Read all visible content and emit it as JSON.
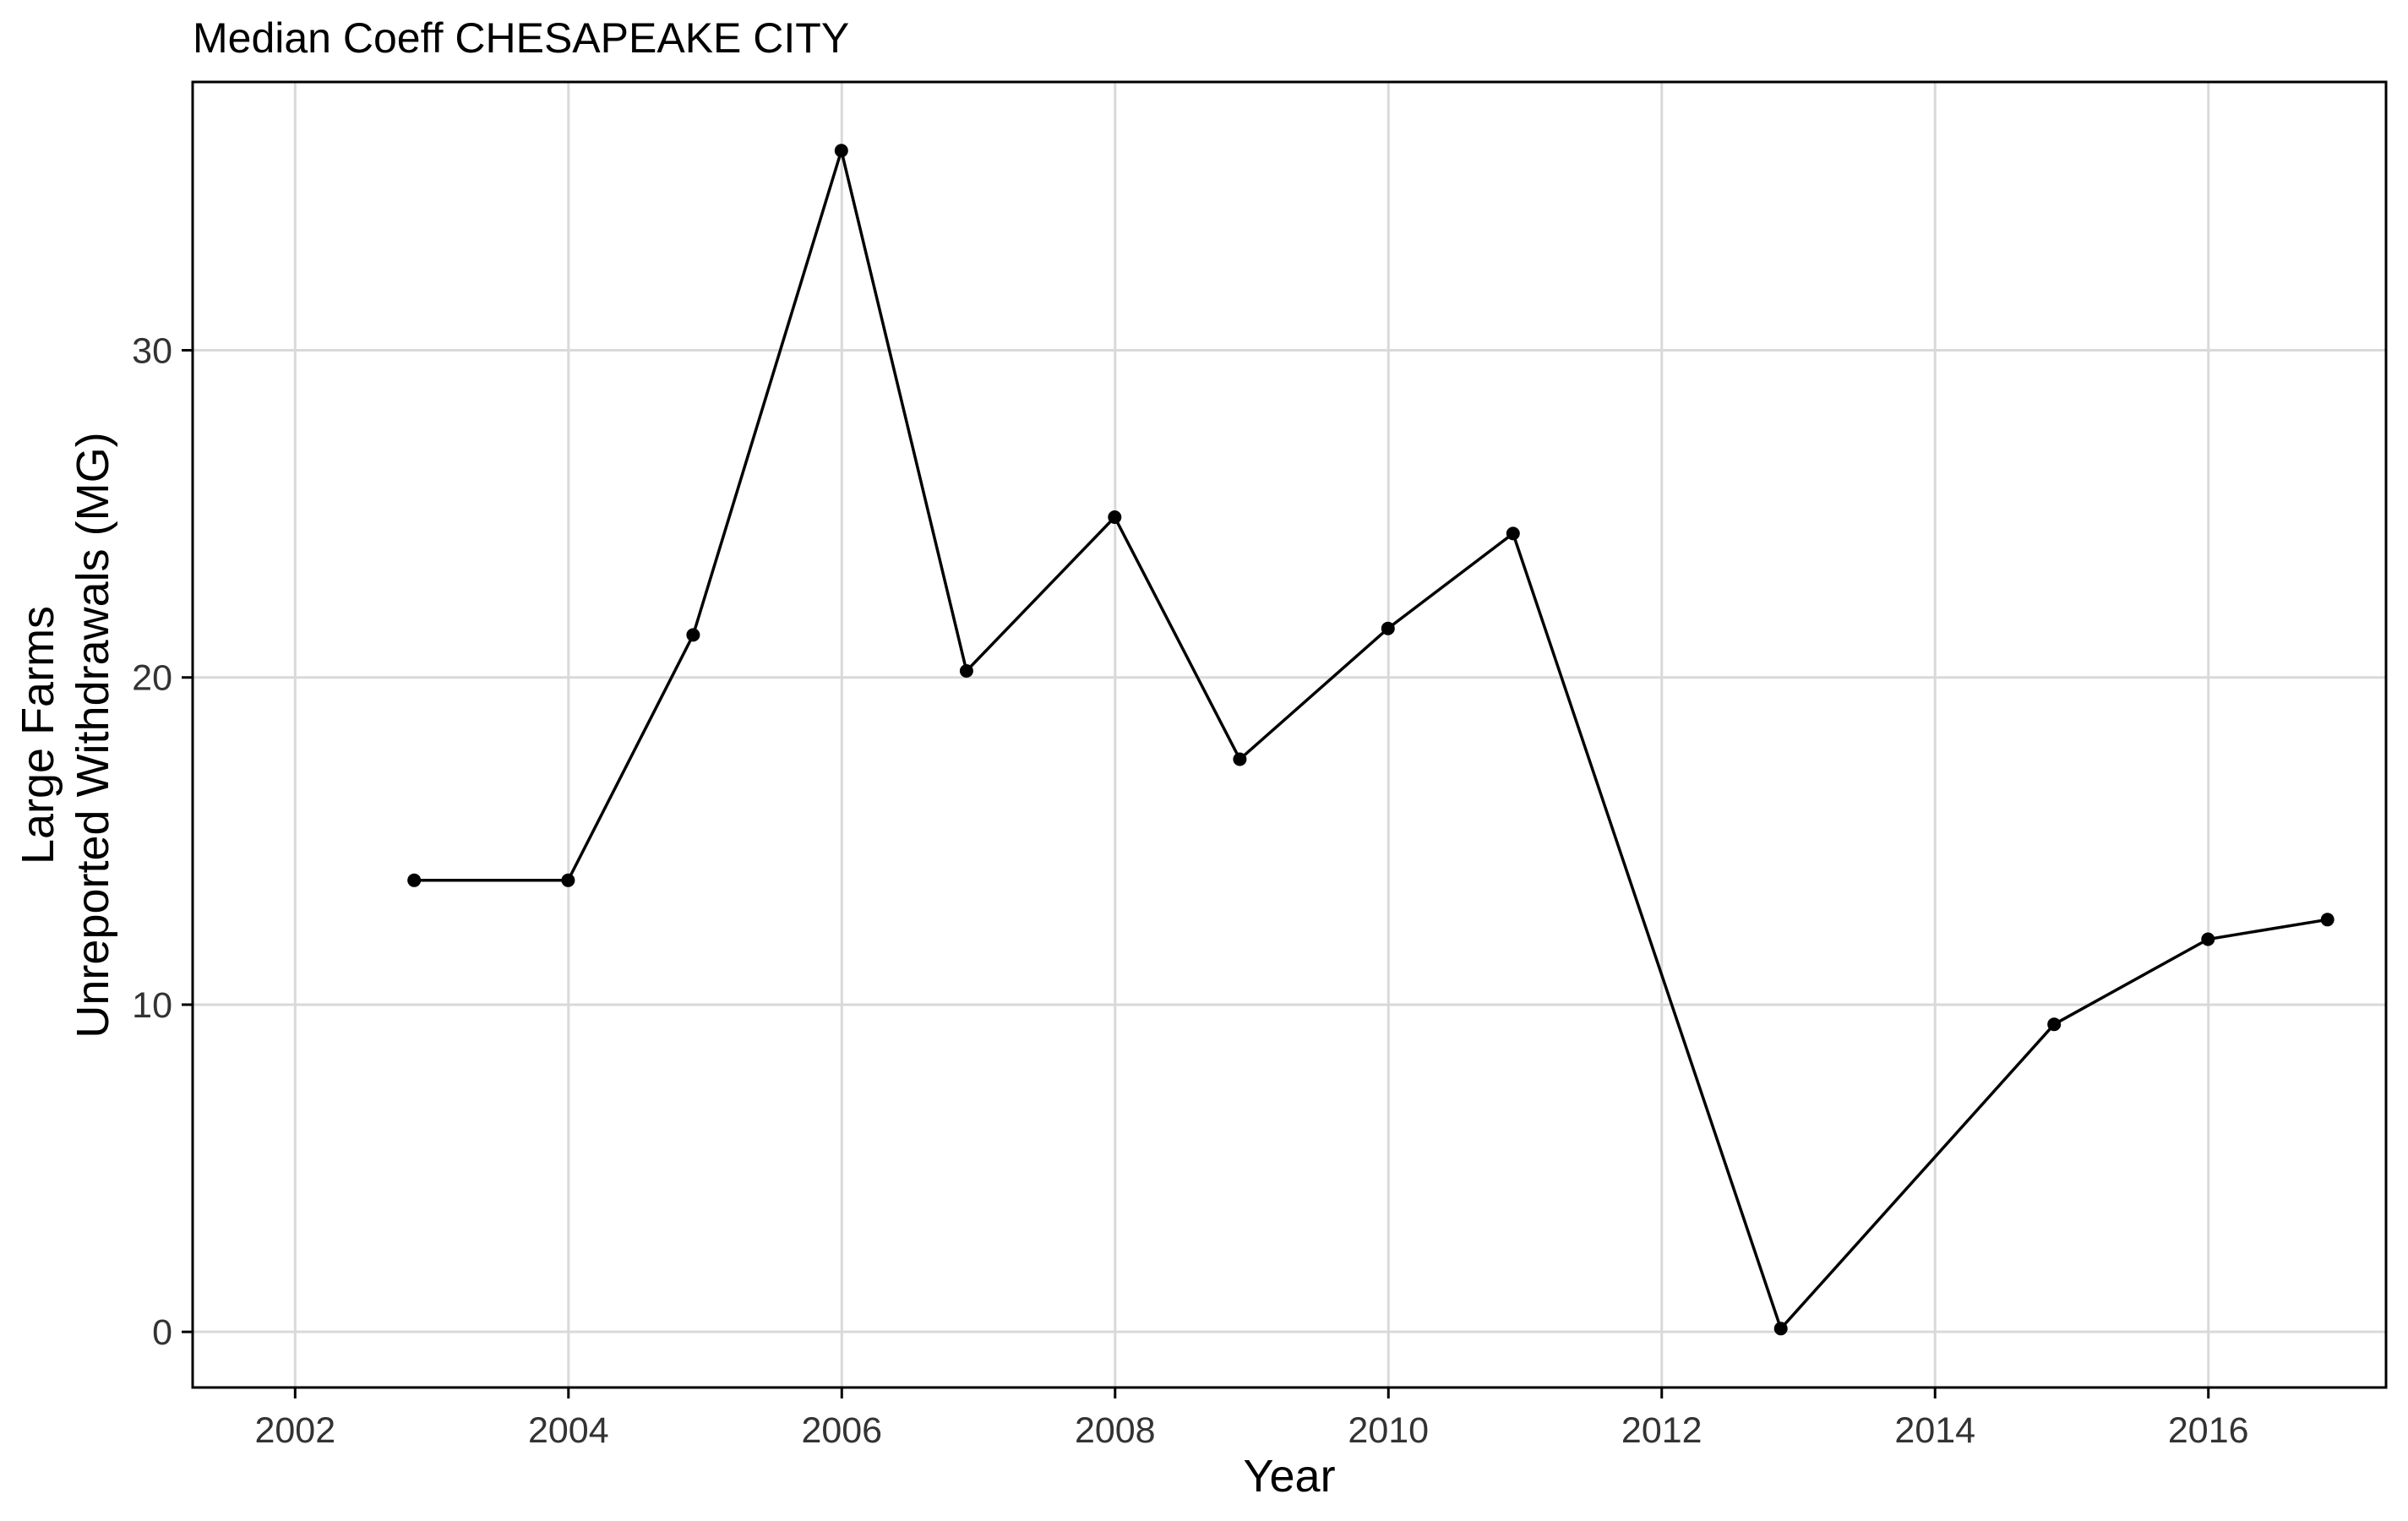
{
  "chart_data": {
    "type": "line",
    "title": "Median Coeff CHESAPEAKE CITY",
    "xlabel": "Year",
    "ylabel_lines": [
      "Large Farms",
      "Unreported Withdrawals (MG)"
    ],
    "xlim": [
      2001.25,
      2017.3
    ],
    "ylim": [
      -1.7,
      38.2
    ],
    "x_ticks": [
      2002,
      2004,
      2006,
      2008,
      2010,
      2012,
      2014,
      2016
    ],
    "y_ticks": [
      0,
      10,
      20,
      30
    ],
    "grid": true,
    "legend": "none",
    "line_color": "#000000",
    "grid_color": "#d9d9d9",
    "series": [
      {
        "x": [
          "2002-11-15",
          "2003-12-31",
          "2004-11-30",
          "2005-12-31",
          "2006-11-30",
          "2007-12-31",
          "2008-11-30",
          "2009-12-31",
          "2010-11-30",
          "2012-11-15",
          "2014-11-15",
          "2015-12-31",
          "2016-11-15"
        ],
        "y": [
          13.8,
          13.8,
          21.3,
          36.1,
          20.2,
          24.9,
          17.5,
          21.5,
          24.4,
          0.1,
          9.4,
          12.0,
          12.6
        ]
      }
    ]
  }
}
